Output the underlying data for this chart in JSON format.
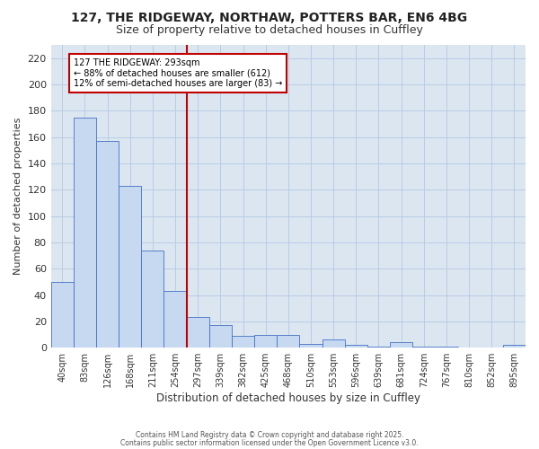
{
  "title1": "127, THE RIDGEWAY, NORTHAW, POTTERS BAR, EN6 4BG",
  "title2": "Size of property relative to detached houses in Cuffley",
  "xlabel": "Distribution of detached houses by size in Cuffley",
  "ylabel": "Number of detached properties",
  "categories": [
    "40sqm",
    "83sqm",
    "126sqm",
    "168sqm",
    "211sqm",
    "254sqm",
    "297sqm",
    "339sqm",
    "382sqm",
    "425sqm",
    "468sqm",
    "510sqm",
    "553sqm",
    "596sqm",
    "639sqm",
    "681sqm",
    "724sqm",
    "767sqm",
    "810sqm",
    "852sqm",
    "895sqm"
  ],
  "values": [
    50,
    175,
    157,
    123,
    74,
    43,
    23,
    17,
    9,
    10,
    10,
    3,
    6,
    2,
    1,
    4,
    1,
    1,
    0,
    0,
    2
  ],
  "bar_color": "#c6d9f0",
  "bar_edge_color": "#4472c4",
  "vline_color": "#c00000",
  "vline_x": 5.5,
  "annotation_lines": [
    "127 THE RIDGEWAY: 293sqm",
    "← 88% of detached houses are smaller (612)",
    "12% of semi-detached houses are larger (83) →"
  ],
  "annotation_box_color": "#c00000",
  "annotation_bg": "#ffffff",
  "ylim": [
    0,
    230
  ],
  "yticks": [
    0,
    20,
    40,
    60,
    80,
    100,
    120,
    140,
    160,
    180,
    200,
    220
  ],
  "grid_color": "#b8cce4",
  "plot_bg_color": "#dce6f1",
  "fig_bg_color": "#ffffff",
  "footer1": "Contains HM Land Registry data © Crown copyright and database right 2025.",
  "footer2": "Contains public sector information licensed under the Open Government Licence v3.0.",
  "figsize": [
    6.0,
    5.0
  ],
  "dpi": 100
}
